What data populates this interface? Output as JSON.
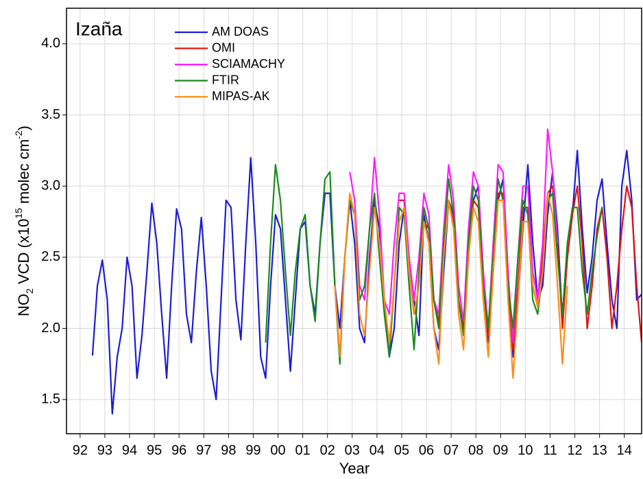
{
  "chart_data": {
    "type": "line",
    "annotation": "Izaña",
    "xlabel": "Year",
    "ylabel": [
      "NO",
      "2",
      " VCD (x10",
      "15",
      " molec cm",
      "-2",
      ")"
    ],
    "xlim": [
      1991.45,
      2014.7
    ],
    "ylim": [
      1.26,
      4.25
    ],
    "grid": true,
    "legend": "upper-left",
    "xticks": [
      {
        "value": 1992,
        "label": "92"
      },
      {
        "value": 1993,
        "label": "93"
      },
      {
        "value": 1994,
        "label": "94"
      },
      {
        "value": 1995,
        "label": "95"
      },
      {
        "value": 1996,
        "label": "96"
      },
      {
        "value": 1997,
        "label": "97"
      },
      {
        "value": 1998,
        "label": "98"
      },
      {
        "value": 1999,
        "label": "99"
      },
      {
        "value": 2000,
        "label": "00"
      },
      {
        "value": 2001,
        "label": "01"
      },
      {
        "value": 2002,
        "label": "02"
      },
      {
        "value": 2003,
        "label": "03"
      },
      {
        "value": 2004,
        "label": "04"
      },
      {
        "value": 2005,
        "label": "05"
      },
      {
        "value": 2006,
        "label": "06"
      },
      {
        "value": 2007,
        "label": "07"
      },
      {
        "value": 2008,
        "label": "08"
      },
      {
        "value": 2009,
        "label": "09"
      },
      {
        "value": 2010,
        "label": "10"
      },
      {
        "value": 2011,
        "label": "11"
      },
      {
        "value": 2012,
        "label": "12"
      },
      {
        "value": 2013,
        "label": "13"
      },
      {
        "value": 2014,
        "label": "14"
      }
    ],
    "yticks": [
      1.5,
      {
        "value": 2.0,
        "label": "2.0"
      },
      2.5,
      {
        "value": 3.0,
        "label": "3.0"
      },
      3.5,
      {
        "value": 4.0,
        "label": "4.0"
      }
    ],
    "x": [
      1992.5,
      1992.7,
      1992.9,
      1993.1,
      1993.3,
      1993.5,
      1993.7,
      1993.9,
      1994.1,
      1994.3,
      1994.5,
      1994.7,
      1994.9,
      1995.1,
      1995.3,
      1995.5,
      1995.7,
      1995.9,
      1996.1,
      1996.3,
      1996.5,
      1996.7,
      1996.9,
      1997.1,
      1997.3,
      1997.5,
      1997.7,
      1997.9,
      1998.1,
      1998.3,
      1998.5,
      1998.7,
      1998.9,
      1999.1,
      1999.3,
      1999.5,
      1999.7,
      1999.9,
      2000.1,
      2000.3,
      2000.5,
      2000.7,
      2000.9,
      2001.1,
      2001.3,
      2001.5,
      2001.7,
      2001.9,
      2002.1,
      2002.3,
      2002.5,
      2002.7,
      2002.9,
      2003.1,
      2003.3,
      2003.5,
      2003.7,
      2003.9,
      2004.1,
      2004.3,
      2004.5,
      2004.7,
      2004.9,
      2005.1,
      2005.3,
      2005.5,
      2005.7,
      2005.9,
      2006.1,
      2006.3,
      2006.5,
      2006.7,
      2006.9,
      2007.1,
      2007.3,
      2007.5,
      2007.7,
      2007.9,
      2008.1,
      2008.3,
      2008.5,
      2008.7,
      2008.9,
      2009.1,
      2009.3,
      2009.5,
      2009.7,
      2009.9,
      2010.1,
      2010.3,
      2010.5,
      2010.7,
      2010.9,
      2011.1,
      2011.3,
      2011.5,
      2011.7,
      2011.9,
      2012.1,
      2012.3,
      2012.5,
      2012.7,
      2012.9,
      2013.1,
      2013.3,
      2013.5,
      2013.7,
      2013.9,
      2014.1,
      2014.3,
      2014.5,
      2014.7
    ],
    "series": [
      {
        "name": "AM DOAS",
        "color": "#1c1cd4",
        "values": [
          1.81,
          2.3,
          2.48,
          2.2,
          1.4,
          1.8,
          2.0,
          2.5,
          2.3,
          1.65,
          1.95,
          2.4,
          2.88,
          2.6,
          2.1,
          1.65,
          2.3,
          2.84,
          2.7,
          2.1,
          1.9,
          2.4,
          2.78,
          2.3,
          1.7,
          1.5,
          2.2,
          2.9,
          2.85,
          2.2,
          1.92,
          2.6,
          3.2,
          2.6,
          1.8,
          1.65,
          2.3,
          2.8,
          2.7,
          2.2,
          1.7,
          2.2,
          2.7,
          2.75,
          2.3,
          2.1,
          2.6,
          2.95,
          2.95,
          2.3,
          2.0,
          2.5,
          2.9,
          2.6,
          2.0,
          1.9,
          2.5,
          2.9,
          2.7,
          2.2,
          1.8,
          2.0,
          2.6,
          2.85,
          2.5,
          2.2,
          1.95,
          2.8,
          2.6,
          2.0,
          1.85,
          2.4,
          2.9,
          2.8,
          2.2,
          1.95,
          2.5,
          2.9,
          3.0,
          2.4,
          1.9,
          2.4,
          2.9,
          3.05,
          2.4,
          1.8,
          2.2,
          2.7,
          3.15,
          2.6,
          2.2,
          2.3,
          2.8,
          3.1,
          2.7,
          2.05,
          2.5,
          2.8,
          3.25,
          2.7,
          2.25,
          2.5,
          2.9,
          3.05,
          2.6,
          2.2,
          2.0,
          3.0,
          3.25,
          2.9,
          2.2,
          2.24
        ]
      },
      {
        "name": "OMI",
        "color": "#e01414",
        "values": [
          null,
          null,
          null,
          null,
          null,
          null,
          null,
          null,
          null,
          null,
          null,
          null,
          null,
          null,
          null,
          null,
          null,
          null,
          null,
          null,
          null,
          null,
          null,
          null,
          null,
          null,
          null,
          null,
          null,
          null,
          null,
          null,
          null,
          null,
          null,
          null,
          null,
          null,
          null,
          null,
          null,
          null,
          null,
          null,
          null,
          null,
          null,
          null,
          null,
          null,
          null,
          null,
          null,
          null,
          null,
          null,
          null,
          null,
          null,
          null,
          null,
          null,
          2.9,
          2.9,
          2.4,
          2.1,
          2.3,
          2.75,
          2.7,
          2.2,
          2.05,
          2.5,
          2.9,
          2.75,
          2.2,
          2.0,
          2.5,
          2.9,
          2.85,
          2.3,
          1.95,
          2.4,
          2.95,
          2.95,
          2.3,
          1.85,
          2.3,
          2.85,
          2.85,
          2.3,
          2.15,
          2.5,
          2.95,
          3.0,
          2.6,
          2.0,
          2.5,
          2.8,
          3.0,
          2.6,
          2.0,
          2.3,
          2.7,
          2.85,
          2.5,
          2.0,
          2.3,
          2.7,
          3.0,
          2.85,
          2.3,
          1.9
        ]
      },
      {
        "name": "SCIAMACHY",
        "color": "#ff1aff",
        "values": [
          null,
          null,
          null,
          null,
          null,
          null,
          null,
          null,
          null,
          null,
          null,
          null,
          null,
          null,
          null,
          null,
          null,
          null,
          null,
          null,
          null,
          null,
          null,
          null,
          null,
          null,
          null,
          null,
          null,
          null,
          null,
          null,
          null,
          null,
          null,
          null,
          null,
          null,
          null,
          null,
          null,
          null,
          null,
          null,
          null,
          null,
          null,
          null,
          null,
          null,
          null,
          null,
          3.1,
          2.9,
          2.3,
          2.2,
          2.7,
          3.2,
          2.8,
          2.2,
          2.1,
          2.6,
          2.95,
          2.95,
          2.5,
          2.2,
          2.5,
          2.95,
          2.8,
          2.2,
          2.1,
          2.7,
          3.15,
          2.9,
          2.3,
          2.05,
          2.7,
          3.1,
          3.0,
          2.4,
          2.0,
          2.6,
          3.15,
          3.1,
          2.4,
          1.9,
          2.5,
          3.0,
          3.0,
          2.4,
          2.2,
          2.6,
          3.4,
          3.1,
          2.6,
          null,
          null,
          null,
          null,
          null,
          null,
          null,
          null,
          null,
          null,
          null,
          null,
          null,
          null,
          null,
          null,
          null
        ]
      },
      {
        "name": "FTIR",
        "color": "#1a8a1a",
        "values": [
          null,
          null,
          null,
          null,
          null,
          null,
          null,
          null,
          null,
          null,
          null,
          null,
          null,
          null,
          null,
          null,
          null,
          null,
          null,
          null,
          null,
          null,
          null,
          null,
          null,
          null,
          null,
          null,
          null,
          null,
          null,
          null,
          null,
          null,
          null,
          1.9,
          2.6,
          3.15,
          2.9,
          2.4,
          1.95,
          2.4,
          2.7,
          2.8,
          2.3,
          2.05,
          2.6,
          3.05,
          3.1,
          2.3,
          1.75,
          2.5,
          2.9,
          2.8,
          2.2,
          2.3,
          2.7,
          2.95,
          2.5,
          2.1,
          1.8,
          2.3,
          2.85,
          2.8,
          2.3,
          1.85,
          2.4,
          2.85,
          2.7,
          2.2,
          2.0,
          2.6,
          3.05,
          2.8,
          2.2,
          1.95,
          2.6,
          3.0,
          2.9,
          2.3,
          2.0,
          2.5,
          3.05,
          2.9,
          2.3,
          2.0,
          2.5,
          2.9,
          2.8,
          2.2,
          2.1,
          2.4,
          2.9,
          2.95,
          2.5,
          2.1,
          2.6,
          2.85,
          2.85,
          2.4,
          2.1,
          2.4,
          2.65,
          2.85,
          null,
          null,
          null,
          null,
          null,
          null,
          null,
          null
        ]
      },
      {
        "name": "MIPAS-AK",
        "color": "#ff8c1a",
        "values": [
          null,
          null,
          null,
          null,
          null,
          null,
          null,
          null,
          null,
          null,
          null,
          null,
          null,
          null,
          null,
          null,
          null,
          null,
          null,
          null,
          null,
          null,
          null,
          null,
          null,
          null,
          null,
          null,
          null,
          null,
          null,
          null,
          null,
          null,
          null,
          null,
          null,
          null,
          null,
          null,
          null,
          null,
          null,
          null,
          null,
          null,
          null,
          null,
          null,
          2.3,
          1.8,
          2.5,
          2.95,
          2.8,
          2.1,
          1.95,
          2.4,
          2.85,
          2.6,
          2.2,
          1.9,
          2.3,
          2.75,
          2.85,
          2.4,
          2.1,
          2.3,
          2.75,
          2.6,
          2.0,
          1.75,
          2.5,
          2.9,
          2.7,
          2.1,
          1.85,
          2.5,
          2.85,
          2.75,
          2.2,
          1.8,
          2.4,
          2.9,
          2.9,
          2.2,
          1.65,
          2.2,
          2.75,
          2.75,
          2.3,
          2.15,
          2.4,
          2.95,
          2.8,
          2.3,
          1.75,
          2.3,
          null,
          null,
          null,
          null,
          null,
          null,
          null,
          null,
          null,
          null,
          null,
          null,
          null,
          null,
          null
        ]
      }
    ]
  }
}
